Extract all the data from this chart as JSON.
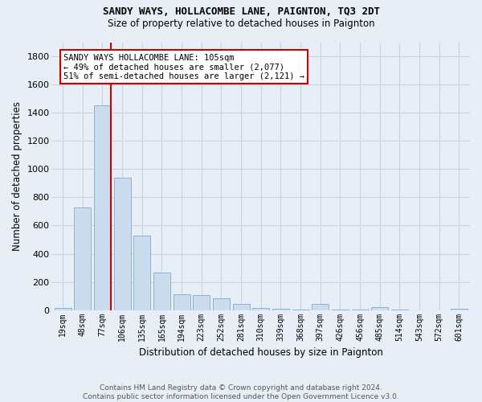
{
  "title1": "SANDY WAYS, HOLLACOMBE LANE, PAIGNTON, TQ3 2DT",
  "title2": "Size of property relative to detached houses in Paignton",
  "xlabel": "Distribution of detached houses by size in Paignton",
  "ylabel": "Number of detached properties",
  "footnote1": "Contains HM Land Registry data © Crown copyright and database right 2024.",
  "footnote2": "Contains public sector information licensed under the Open Government Licence v3.0.",
  "bar_labels": [
    "19sqm",
    "48sqm",
    "77sqm",
    "106sqm",
    "135sqm",
    "165sqm",
    "194sqm",
    "223sqm",
    "252sqm",
    "281sqm",
    "310sqm",
    "339sqm",
    "368sqm",
    "397sqm",
    "426sqm",
    "456sqm",
    "485sqm",
    "514sqm",
    "543sqm",
    "572sqm",
    "601sqm"
  ],
  "bar_values": [
    15,
    730,
    1450,
    940,
    530,
    265,
    110,
    105,
    85,
    42,
    15,
    7,
    5,
    42,
    3,
    2,
    18,
    1,
    0,
    0,
    10
  ],
  "bar_color": "#ccdcef",
  "bar_edge_color": "#88b4d8",
  "grid_color": "#c8d4e0",
  "bg_color": "#e8eef6",
  "annotation_line1": "SANDY WAYS HOLLACOMBE LANE: 105sqm",
  "annotation_line2": "← 49% of detached houses are smaller (2,077)",
  "annotation_line3": "51% of semi-detached houses are larger (2,121) →",
  "vline_color": "#cc0000",
  "vline_x_idx": 2,
  "box_face": "#ffffff",
  "box_edge": "#cc0000",
  "ylim": [
    0,
    1900
  ],
  "yticks": [
    0,
    200,
    400,
    600,
    800,
    1000,
    1200,
    1400,
    1600,
    1800
  ],
  "title1_fontsize": 9.0,
  "title2_fontsize": 8.5,
  "axis_label_fontsize": 8.5,
  "tick_fontsize": 7.0,
  "annotation_fontsize": 7.5,
  "footnote_fontsize": 6.5
}
